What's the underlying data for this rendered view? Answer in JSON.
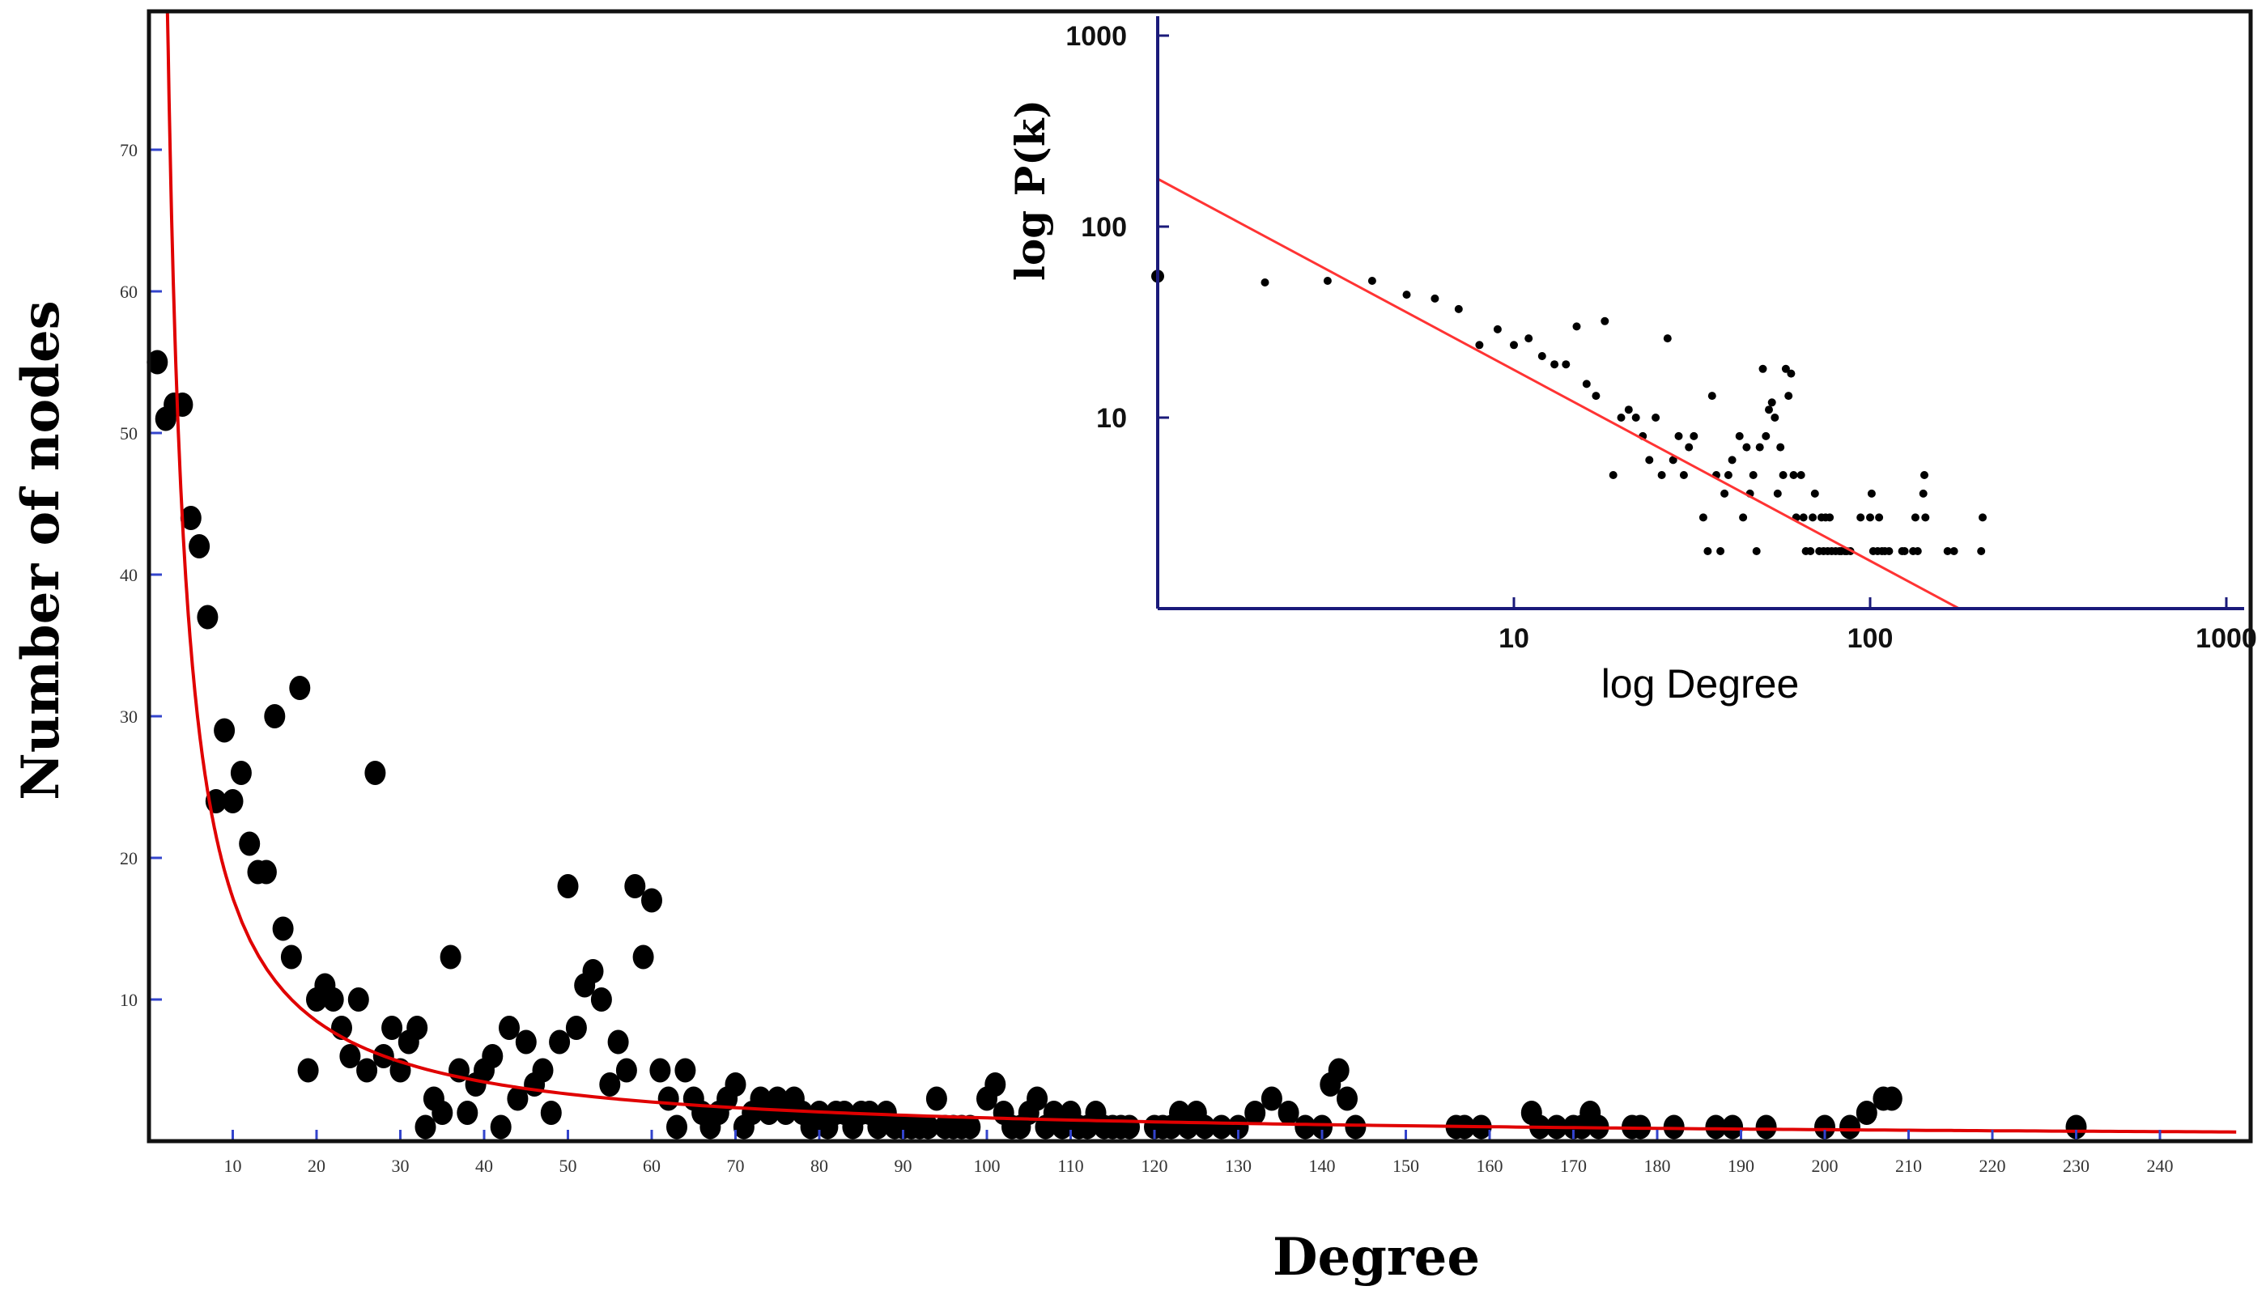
{
  "chart_data": [
    {
      "type": "scatter",
      "xlabel": "Degree",
      "ylabel": "Number of nodes",
      "xlim": [
        0,
        250
      ],
      "ylim": [
        0,
        80
      ],
      "xticks": [
        10,
        20,
        30,
        40,
        50,
        60,
        70,
        80,
        90,
        100,
        110,
        120,
        130,
        140,
        150,
        160,
        170,
        180,
        190,
        200,
        210,
        220,
        230,
        240
      ],
      "yticks": [
        10,
        20,
        30,
        40,
        50,
        60,
        70
      ],
      "grid": false,
      "colors": {
        "points": "#000000",
        "fit": "#e00000",
        "tick_marks": "#3344cc"
      },
      "series": [
        {
          "points": [
            [
              1,
              55
            ],
            [
              2,
              51
            ],
            [
              3,
              52
            ],
            [
              4,
              52
            ],
            [
              5,
              44
            ],
            [
              6,
              42
            ],
            [
              7,
              37
            ],
            [
              8,
              24
            ],
            [
              9,
              29
            ],
            [
              10,
              24
            ],
            [
              11,
              26
            ],
            [
              12,
              21
            ],
            [
              13,
              19
            ],
            [
              14,
              19
            ],
            [
              15,
              30
            ],
            [
              16,
              15
            ],
            [
              17,
              13
            ],
            [
              18,
              32
            ],
            [
              19,
              5
            ],
            [
              20,
              10
            ],
            [
              21,
              11
            ],
            [
              22,
              10
            ],
            [
              23,
              8
            ],
            [
              24,
              6
            ],
            [
              25,
              10
            ],
            [
              26,
              5
            ],
            [
              27,
              26
            ],
            [
              28,
              6
            ],
            [
              29,
              8
            ],
            [
              30,
              5
            ],
            [
              31,
              7
            ],
            [
              32,
              8
            ],
            [
              33,
              1
            ],
            [
              34,
              3
            ],
            [
              35,
              2
            ],
            [
              36,
              13
            ],
            [
              37,
              5
            ],
            [
              38,
              2
            ],
            [
              39,
              4
            ],
            [
              40,
              5
            ],
            [
              41,
              6
            ],
            [
              42,
              1
            ],
            [
              43,
              8
            ],
            [
              44,
              3
            ],
            [
              45,
              7
            ],
            [
              46,
              4
            ],
            [
              47,
              5
            ],
            [
              48,
              2
            ],
            [
              49,
              7
            ],
            [
              50,
              18
            ],
            [
              51,
              8
            ],
            [
              52,
              11
            ],
            [
              53,
              12
            ],
            [
              54,
              10
            ],
            [
              55,
              4
            ],
            [
              56,
              7
            ],
            [
              57,
              5
            ],
            [
              58,
              18
            ],
            [
              59,
              13
            ],
            [
              60,
              17
            ],
            [
              61,
              5
            ],
            [
              62,
              3
            ],
            [
              63,
              1
            ],
            [
              64,
              5
            ],
            [
              65,
              3
            ],
            [
              66,
              2
            ],
            [
              67,
              1
            ],
            [
              68,
              2
            ],
            [
              69,
              3
            ],
            [
              70,
              4
            ],
            [
              71,
              1
            ],
            [
              72,
              2
            ],
            [
              73,
              3
            ],
            [
              74,
              2
            ],
            [
              75,
              3
            ],
            [
              76,
              2
            ],
            [
              77,
              3
            ],
            [
              78,
              2
            ],
            [
              79,
              1
            ],
            [
              80,
              2
            ],
            [
              81,
              1
            ],
            [
              82,
              2
            ],
            [
              83,
              2
            ],
            [
              84,
              1
            ],
            [
              85,
              2
            ],
            [
              86,
              2
            ],
            [
              87,
              1
            ],
            [
              88,
              2
            ],
            [
              89,
              1
            ],
            [
              90,
              1
            ],
            [
              91,
              1
            ],
            [
              92,
              1
            ],
            [
              93,
              1
            ],
            [
              94,
              3
            ],
            [
              95,
              1
            ],
            [
              96,
              1
            ],
            [
              97,
              1
            ],
            [
              98,
              1
            ],
            [
              100,
              3
            ],
            [
              101,
              4
            ],
            [
              102,
              2
            ],
            [
              103,
              1
            ],
            [
              104,
              1
            ],
            [
              105,
              2
            ],
            [
              106,
              3
            ],
            [
              107,
              1
            ],
            [
              108,
              2
            ],
            [
              109,
              1
            ],
            [
              110,
              2
            ],
            [
              111,
              1
            ],
            [
              112,
              1
            ],
            [
              113,
              2
            ],
            [
              114,
              1
            ],
            [
              115,
              1
            ],
            [
              116,
              1
            ],
            [
              117,
              1
            ],
            [
              120,
              1
            ],
            [
              121,
              1
            ],
            [
              122,
              1
            ],
            [
              123,
              2
            ],
            [
              124,
              1
            ],
            [
              125,
              2
            ],
            [
              126,
              1
            ],
            [
              128,
              1
            ],
            [
              130,
              1
            ],
            [
              132,
              2
            ],
            [
              134,
              3
            ],
            [
              136,
              2
            ],
            [
              138,
              1
            ],
            [
              140,
              1
            ],
            [
              141,
              4
            ],
            [
              142,
              5
            ],
            [
              143,
              3
            ],
            [
              144,
              1
            ],
            [
              156,
              1
            ],
            [
              157,
              1
            ],
            [
              159,
              1
            ],
            [
              165,
              2
            ],
            [
              166,
              1
            ],
            [
              168,
              1
            ],
            [
              170,
              1
            ],
            [
              171,
              1
            ],
            [
              172,
              2
            ],
            [
              173,
              1
            ],
            [
              177,
              1
            ],
            [
              178,
              1
            ],
            [
              182,
              1
            ],
            [
              187,
              1
            ],
            [
              189,
              1
            ],
            [
              193,
              1
            ],
            [
              200,
              1
            ],
            [
              203,
              1
            ],
            [
              205,
              2
            ],
            [
              207,
              3
            ],
            [
              208,
              3
            ],
            [
              230,
              1
            ]
          ]
        }
      ],
      "fit": {
        "type": "power_law",
        "expression": "y = 180 * x^-1.02"
      }
    },
    {
      "type": "scatter",
      "xlabel": "log Degree",
      "ylabel": "log P(k)",
      "xscale": "log",
      "yscale": "log",
      "xlim": [
        1,
        1000
      ],
      "ylim": [
        1,
        1000
      ],
      "xticks": [
        "10",
        "100",
        "1000"
      ],
      "yticks": [
        "10",
        "100",
        "1000"
      ],
      "grid": false,
      "position": "top-right inset",
      "colors": {
        "points": "#000000",
        "fit": "#ff3333"
      },
      "series": [
        {
          "points": [
            [
              1,
              55
            ],
            [
              2,
              51
            ],
            [
              3,
              52
            ],
            [
              4,
              52
            ],
            [
              5,
              44
            ],
            [
              6,
              42
            ],
            [
              7,
              37
            ],
            [
              8,
              24
            ],
            [
              9,
              29
            ],
            [
              10,
              24
            ],
            [
              11,
              26
            ],
            [
              12,
              21
            ],
            [
              13,
              19
            ],
            [
              14,
              19
            ],
            [
              15,
              30
            ],
            [
              16,
              15
            ],
            [
              17,
              13
            ],
            [
              18,
              32
            ],
            [
              19,
              5
            ],
            [
              20,
              10
            ],
            [
              21,
              11
            ],
            [
              22,
              10
            ],
            [
              23,
              8
            ],
            [
              24,
              6
            ],
            [
              25,
              10
            ],
            [
              26,
              5
            ],
            [
              27,
              26
            ],
            [
              28,
              6
            ],
            [
              29,
              8
            ],
            [
              30,
              5
            ],
            [
              31,
              7
            ],
            [
              32,
              8
            ],
            [
              34,
              3
            ],
            [
              35,
              2
            ],
            [
              36,
              13
            ],
            [
              37,
              5
            ],
            [
              38,
              2
            ],
            [
              39,
              4
            ],
            [
              40,
              5
            ],
            [
              41,
              6
            ],
            [
              43,
              8
            ],
            [
              44,
              3
            ],
            [
              45,
              7
            ],
            [
              46,
              4
            ],
            [
              47,
              5
            ],
            [
              48,
              2
            ],
            [
              49,
              7
            ],
            [
              50,
              18
            ],
            [
              51,
              8
            ],
            [
              52,
              11
            ],
            [
              53,
              12
            ],
            [
              54,
              10
            ],
            [
              55,
              4
            ],
            [
              56,
              7
            ],
            [
              57,
              5
            ],
            [
              58,
              18
            ],
            [
              59,
              13
            ],
            [
              60,
              17
            ],
            [
              61,
              5
            ],
            [
              62,
              3
            ],
            [
              64,
              5
            ],
            [
              65,
              3
            ],
            [
              66,
              2
            ],
            [
              68,
              2
            ],
            [
              69,
              3
            ],
            [
              70,
              4
            ],
            [
              72,
              2
            ],
            [
              73,
              3
            ],
            [
              74,
              2
            ],
            [
              75,
              3
            ],
            [
              76,
              2
            ],
            [
              77,
              3
            ],
            [
              78,
              2
            ],
            [
              80,
              2
            ],
            [
              82,
              2
            ],
            [
              83,
              2
            ],
            [
              85,
              2
            ],
            [
              86,
              2
            ],
            [
              88,
              2
            ],
            [
              94,
              3
            ],
            [
              100,
              3
            ],
            [
              101,
              4
            ],
            [
              102,
              2
            ],
            [
              105,
              2
            ],
            [
              106,
              3
            ],
            [
              108,
              2
            ],
            [
              110,
              2
            ],
            [
              113,
              2
            ],
            [
              123,
              2
            ],
            [
              125,
              2
            ],
            [
              132,
              2
            ],
            [
              134,
              3
            ],
            [
              136,
              2
            ],
            [
              141,
              4
            ],
            [
              142,
              5
            ],
            [
              143,
              3
            ],
            [
              165,
              2
            ],
            [
              172,
              2
            ],
            [
              205,
              2
            ],
            [
              207,
              3
            ]
          ]
        }
      ],
      "fit": {
        "type": "linear_in_log_log",
        "expression": "log10(P) = 2.25 - 1.0 * log10(k)"
      }
    }
  ]
}
